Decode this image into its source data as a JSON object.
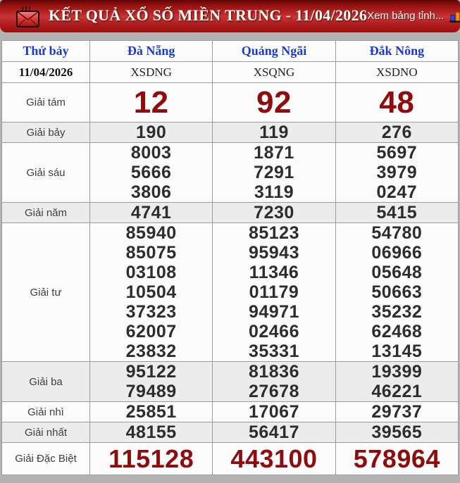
{
  "header": {
    "title": "KẾT QUẢ XỔ SỐ MIỀN TRUNG - 11/04/2026",
    "view_link": "Xem bảng tỉnh..."
  },
  "table": {
    "day_header": "Thứ bảy",
    "provinces": [
      "Đà Nẵng",
      "Quảng Ngãi",
      "Đắk Nông"
    ],
    "date": "11/04/2026",
    "codes": [
      "XSDNG",
      "XSQNG",
      "XSDNO"
    ],
    "prizes": [
      {
        "label": "Giải tám",
        "style": "big-red",
        "columns": [
          [
            "12"
          ],
          [
            "92"
          ],
          [
            "48"
          ]
        ]
      },
      {
        "label": "Giải bảy",
        "style": "normal",
        "columns": [
          [
            "190"
          ],
          [
            "119"
          ],
          [
            "276"
          ]
        ]
      },
      {
        "label": "Giải sáu",
        "style": "normal",
        "columns": [
          [
            "8003",
            "5666",
            "3806"
          ],
          [
            "1871",
            "7291",
            "3119"
          ],
          [
            "5697",
            "3979",
            "0247"
          ]
        ]
      },
      {
        "label": "Giải năm",
        "style": "normal",
        "columns": [
          [
            "4741"
          ],
          [
            "7230"
          ],
          [
            "5415"
          ]
        ]
      },
      {
        "label": "Giải tư",
        "style": "normal",
        "columns": [
          [
            "85940",
            "85075",
            "03108",
            "10504",
            "37323",
            "62007",
            "23832"
          ],
          [
            "85123",
            "95943",
            "11346",
            "01179",
            "94971",
            "02466",
            "35331"
          ],
          [
            "54780",
            "06966",
            "05648",
            "50663",
            "35232",
            "62468",
            "13145"
          ]
        ]
      },
      {
        "label": "Giải ba",
        "style": "normal",
        "columns": [
          [
            "95122",
            "79489"
          ],
          [
            "81836",
            "27678"
          ],
          [
            "19399",
            "46221"
          ]
        ]
      },
      {
        "label": "Giải nhì",
        "style": "normal",
        "columns": [
          [
            "25851"
          ],
          [
            "17067"
          ],
          [
            "29737"
          ]
        ]
      },
      {
        "label": "Giải nhất",
        "style": "normal",
        "columns": [
          [
            "48155"
          ],
          [
            "56417"
          ],
          [
            "39565"
          ]
        ]
      },
      {
        "label": "Giải Đặc Biệt",
        "style": "special-red",
        "columns": [
          [
            "115128"
          ],
          [
            "443100"
          ],
          [
            "578964"
          ]
        ]
      }
    ]
  },
  "icons": {
    "envelope": "envelope-icon",
    "chart": "bar-chart-icon"
  },
  "colors": {
    "accent_red": "#8e0c0c",
    "header_blue": "#1a3bc4",
    "page_gray": "#b3b3b3",
    "row_stripe": "#ececec",
    "border_gray": "#9b9b9b"
  }
}
